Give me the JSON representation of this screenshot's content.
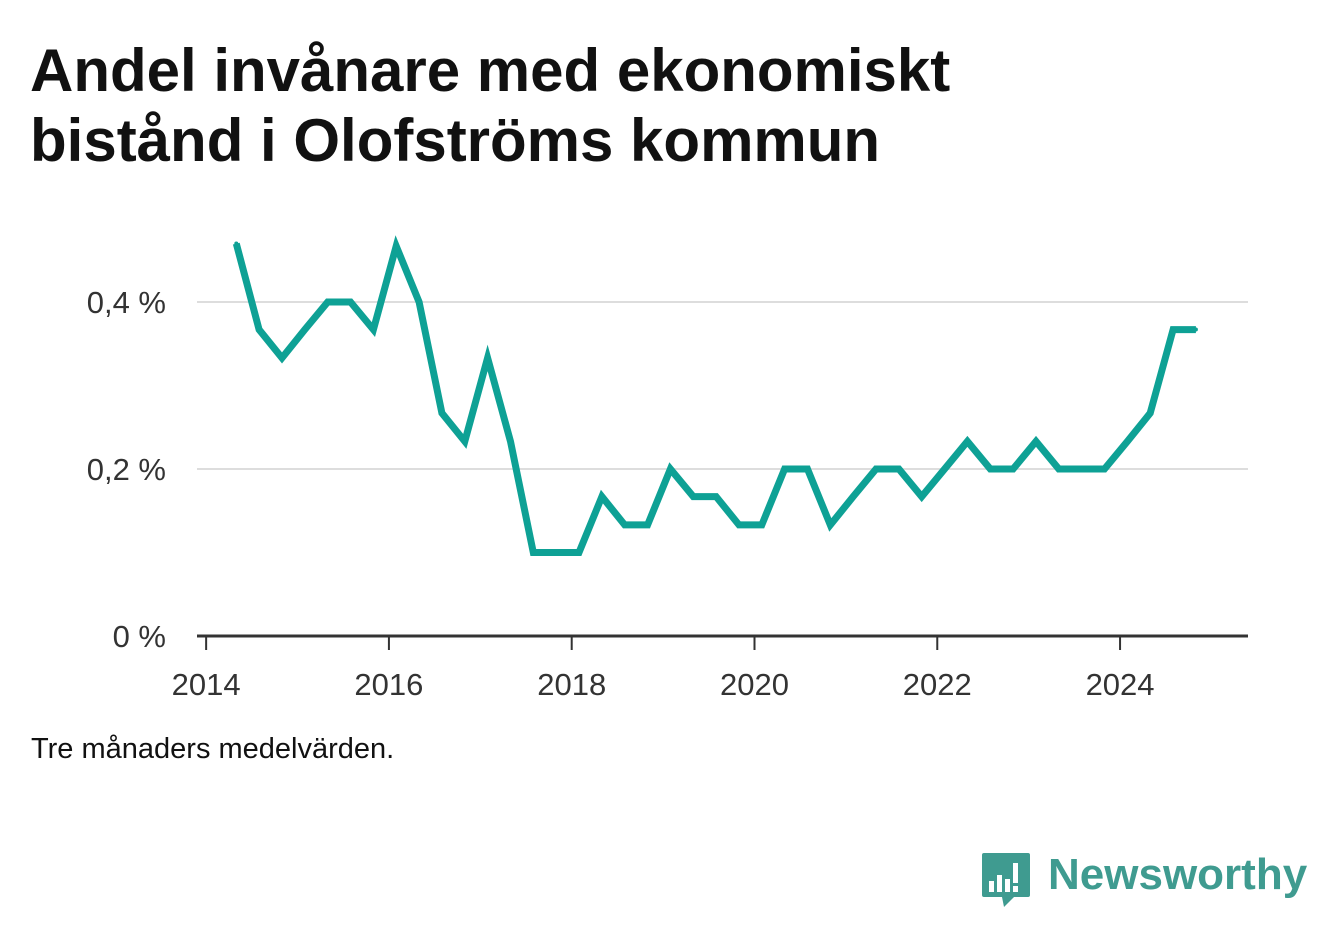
{
  "title": "Andel invånare med ekonomiskt bistånd i Olofströms kommun",
  "note": "Tre månaders medelvärden.",
  "brand": {
    "name": "Newsworthy",
    "icon": "newsworthy-chart-bubble-icon"
  },
  "colors": {
    "line": "#0ea195",
    "grid": "#dddddd",
    "axis": "#333333",
    "brand": "#3f9b90"
  },
  "chart_data": {
    "type": "line",
    "title": "Andel invånare med ekonomiskt bistånd i Olofströms kommun",
    "xlabel": "",
    "ylabel": "",
    "xlim": [
      2013.9,
      2025.4
    ],
    "ylim": [
      0,
      0.4
    ],
    "grid": true,
    "y_ticks": [
      0,
      0.2,
      0.4
    ],
    "y_tick_labels": [
      "0 %",
      "0,2 %",
      "0,4 %"
    ],
    "x_ticks": [
      2014,
      2016,
      2018,
      2020,
      2022,
      2024
    ],
    "x_tick_labels": [
      "2014",
      "2016",
      "2018",
      "2020",
      "2022",
      "2024"
    ],
    "series": [
      {
        "x": [
          2014.33,
          2014.58,
          2014.83,
          2015.08,
          2015.33,
          2015.58,
          2015.83,
          2016.08,
          2016.33,
          2016.58,
          2016.83,
          2017.08,
          2017.33,
          2017.58,
          2017.83,
          2018.08,
          2018.33,
          2018.58,
          2018.83,
          2019.08,
          2019.33,
          2019.58,
          2019.83,
          2020.08,
          2020.33,
          2020.58,
          2020.83,
          2021.08,
          2021.33,
          2021.58,
          2021.83,
          2022.08,
          2022.33,
          2022.58,
          2022.83,
          2023.08,
          2023.33,
          2023.58,
          2023.83,
          2024.08,
          2024.33,
          2024.58,
          2024.83
        ],
        "values": [
          0.47,
          0.367,
          0.333,
          0.367,
          0.4,
          0.4,
          0.367,
          0.467,
          0.4,
          0.267,
          0.233,
          0.333,
          0.233,
          0.1,
          0.1,
          0.1,
          0.167,
          0.133,
          0.133,
          0.2,
          0.167,
          0.167,
          0.133,
          0.133,
          0.2,
          0.2,
          0.133,
          0.167,
          0.2,
          0.2,
          0.167,
          0.2,
          0.233,
          0.2,
          0.2,
          0.233,
          0.2,
          0.2,
          0.2,
          0.233,
          0.267,
          0.367,
          0.367
        ]
      }
    ]
  }
}
